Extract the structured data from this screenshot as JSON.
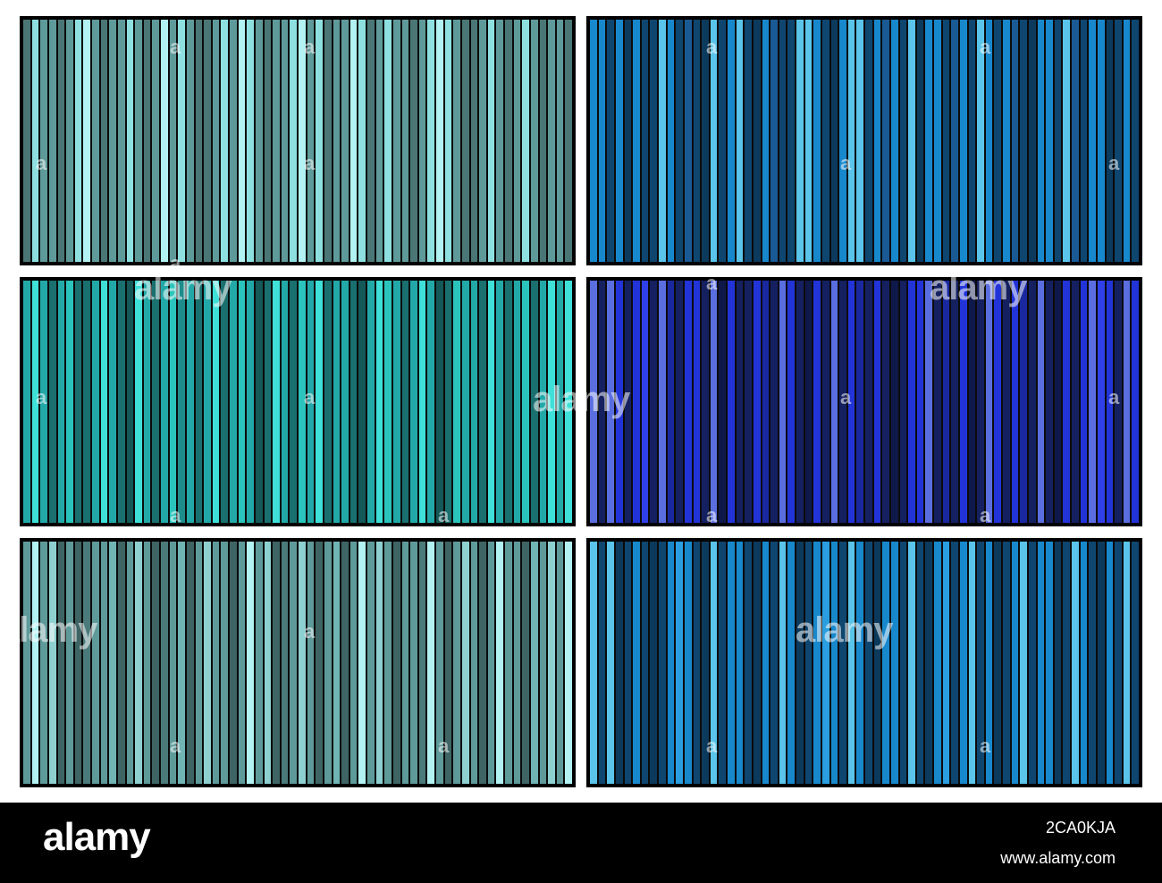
{
  "watermark": {
    "text": "alamy",
    "mark": "a"
  },
  "footer": {
    "logo": "alamy",
    "image_id": "2CA0KJA",
    "url": "www.alamy.com"
  },
  "panels": [
    {
      "name": "teal-gray",
      "palette": [
        "#4a7676",
        "#5f9a9a",
        "#8ee0e0",
        "#b2f2f2",
        "#3f6464",
        "#6fb1b1"
      ],
      "pattern": [
        0,
        2,
        1,
        1,
        0,
        1,
        2,
        3,
        1,
        0,
        1,
        1,
        2,
        1,
        0,
        1,
        3,
        1,
        2,
        1,
        0,
        0,
        1,
        2,
        1,
        3,
        2,
        1,
        0,
        1,
        1,
        2,
        3,
        1,
        2,
        0,
        1,
        1,
        3,
        2,
        0,
        1,
        2,
        1,
        1,
        0,
        1,
        2,
        3,
        2,
        1,
        0,
        0,
        1,
        2,
        1,
        0,
        1,
        2,
        1,
        0,
        1,
        1,
        0
      ]
    },
    {
      "name": "ocean-blue",
      "palette": [
        "#0e4670",
        "#1888cc",
        "#5ac4ea",
        "#1a5a94",
        "#0c3a5c",
        "#2a9ee0"
      ],
      "pattern": [
        1,
        1,
        0,
        1,
        4,
        1,
        0,
        0,
        2,
        1,
        0,
        3,
        0,
        4,
        2,
        0,
        1,
        2,
        0,
        4,
        1,
        3,
        0,
        0,
        2,
        2,
        1,
        0,
        4,
        1,
        2,
        2,
        0,
        1,
        3,
        1,
        0,
        2,
        4,
        1,
        1,
        0,
        3,
        1,
        0,
        2,
        1,
        0,
        1,
        3,
        0,
        4,
        1,
        1,
        0,
        2,
        3,
        0,
        1,
        1,
        4,
        0,
        1,
        0
      ]
    },
    {
      "name": "turquoise",
      "palette": [
        "#1a6f6f",
        "#23a8a8",
        "#3ee0d8",
        "#2bc4bc",
        "#145858",
        "#1f8c8c"
      ],
      "pattern": [
        1,
        2,
        1,
        0,
        1,
        3,
        0,
        0,
        1,
        2,
        1,
        0,
        4,
        2,
        1,
        0,
        1,
        3,
        5,
        1,
        0,
        1,
        2,
        0,
        1,
        3,
        1,
        4,
        0,
        2,
        1,
        0,
        3,
        1,
        2,
        0,
        1,
        1,
        0,
        4,
        1,
        2,
        3,
        1,
        0,
        1,
        2,
        1,
        4,
        0,
        3,
        1,
        1,
        0,
        2,
        1,
        0,
        1,
        3,
        0,
        1,
        2,
        1,
        2
      ]
    },
    {
      "name": "royal-blue",
      "palette": [
        "#152060",
        "#2234d8",
        "#5a6ee0",
        "#1a28a0",
        "#3040e8",
        "#0f184a"
      ],
      "pattern": [
        2,
        0,
        2,
        1,
        0,
        1,
        4,
        0,
        2,
        3,
        0,
        1,
        1,
        0,
        2,
        5,
        1,
        0,
        0,
        1,
        3,
        0,
        2,
        1,
        0,
        5,
        1,
        0,
        2,
        0,
        1,
        3,
        0,
        1,
        0,
        5,
        0,
        1,
        1,
        2,
        0,
        3,
        0,
        1,
        5,
        0,
        2,
        1,
        0,
        1,
        3,
        0,
        2,
        0,
        5,
        1,
        0,
        1,
        2,
        4,
        1,
        0,
        2,
        1
      ]
    },
    {
      "name": "sage-teal",
      "palette": [
        "#3e6464",
        "#5f9a9a",
        "#8ed0d0",
        "#b2f2f2",
        "#4a7a7a",
        "#70b4b4"
      ],
      "pattern": [
        1,
        3,
        1,
        2,
        0,
        1,
        0,
        4,
        1,
        1,
        5,
        0,
        1,
        2,
        1,
        0,
        4,
        1,
        5,
        0,
        1,
        2,
        1,
        1,
        0,
        1,
        3,
        1,
        2,
        0,
        4,
        1,
        2,
        1,
        0,
        1,
        5,
        0,
        1,
        3,
        1,
        2,
        1,
        0,
        1,
        1,
        4,
        3,
        1,
        0,
        1,
        2,
        1,
        0,
        1,
        3,
        1,
        1,
        0,
        5,
        1,
        2,
        1,
        3
      ]
    },
    {
      "name": "sky-blue",
      "palette": [
        "#0e4670",
        "#1888cc",
        "#5ac4ea",
        "#1a5a94",
        "#0c3a5c",
        "#2a9ee0"
      ],
      "pattern": [
        2,
        0,
        2,
        4,
        0,
        1,
        0,
        4,
        0,
        1,
        5,
        1,
        0,
        4,
        2,
        0,
        1,
        1,
        0,
        4,
        1,
        0,
        2,
        1,
        4,
        0,
        1,
        5,
        1,
        0,
        2,
        1,
        0,
        4,
        1,
        1,
        0,
        2,
        0,
        4,
        1,
        5,
        0,
        1,
        2,
        0,
        1,
        4,
        0,
        1,
        2,
        0,
        1,
        1,
        4,
        0,
        2,
        1,
        0,
        4,
        1,
        0,
        2,
        0
      ]
    }
  ]
}
